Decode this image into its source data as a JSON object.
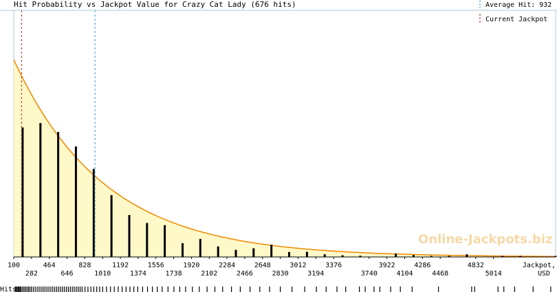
{
  "chart_data": {
    "type": "bar",
    "title": "Hit Probability vs Jackpot Value for Crazy Cat Lady (676 hits)",
    "xlabel_line1": "Jackpot,",
    "xlabel_line2": "USD",
    "hits_label": "Hits",
    "watermark": "Online-Jackpots.biz",
    "xlim": [
      100,
      5650
    ],
    "ylim": [
      0,
      1
    ],
    "grid": false,
    "legend_position": "top-right",
    "average_hit_value": 932,
    "current_jackpot_value": 180,
    "legend": [
      {
        "label": "Average Hit: 932",
        "color": "#3399cc",
        "style": "dashed"
      },
      {
        "label": "Current Jackpot",
        "color": "#aa2222",
        "style": "dashed"
      }
    ],
    "ticks_upper": [
      "100",
      "464",
      "828",
      "1192",
      "1556",
      "1920",
      "2284",
      "2648",
      "3012",
      "3376",
      "3922",
      "4286",
      "4832"
    ],
    "ticks_lower": [
      "282",
      "646",
      "1010",
      "1374",
      "1738",
      "2102",
      "2466",
      "2830",
      "3194",
      "3740",
      "4104",
      "4468",
      "5014"
    ],
    "curve": {
      "type": "exponential",
      "mean": 932,
      "peak_relative": 0.8,
      "color": "#ee8800",
      "fill": "#fff8c8"
    },
    "bars": {
      "x": [
        191,
        373,
        555,
        737,
        919,
        1101,
        1283,
        1465,
        1647,
        1829,
        2011,
        2193,
        2375,
        2557,
        2739,
        2921,
        3103,
        3285,
        3467,
        3649,
        4013,
        4195,
        4377,
        4559,
        4741,
        5105,
        5287,
        5650
      ],
      "values": [
        0.525,
        0.543,
        0.507,
        0.448,
        0.357,
        0.251,
        0.17,
        0.138,
        0.129,
        0.056,
        0.073,
        0.043,
        0.029,
        0.035,
        0.05,
        0.02,
        0.021,
        0.011,
        0.007,
        0.005,
        0.014,
        0.008,
        0.004,
        0.004,
        0.011,
        0.004,
        0.002,
        0.004
      ],
      "color": "#000000"
    },
    "hit_positions": [
      115,
      125,
      135,
      145,
      155,
      165,
      175,
      190,
      205,
      220,
      235,
      250,
      265,
      280,
      300,
      320,
      340,
      360,
      380,
      400,
      420,
      440,
      460,
      480,
      500,
      520,
      540,
      560,
      580,
      600,
      620,
      640,
      660,
      680,
      700,
      720,
      740,
      760,
      780,
      800,
      830,
      860,
      890,
      920,
      950,
      980,
      1010,
      1050,
      1090,
      1130,
      1170,
      1210,
      1250,
      1290,
      1330,
      1370,
      1420,
      1470,
      1520,
      1570,
      1620,
      1680,
      1740,
      1800,
      1860,
      1930,
      2000,
      2080,
      2160,
      2240,
      2330,
      2420,
      2520,
      2620,
      2720,
      2830,
      2950,
      3080,
      3200,
      3300,
      3410,
      3500,
      3640,
      3700,
      3790,
      3850,
      3960,
      4060,
      4180,
      4450,
      4790,
      4820,
      5060,
      5120,
      5230,
      5420,
      5600
    ]
  }
}
